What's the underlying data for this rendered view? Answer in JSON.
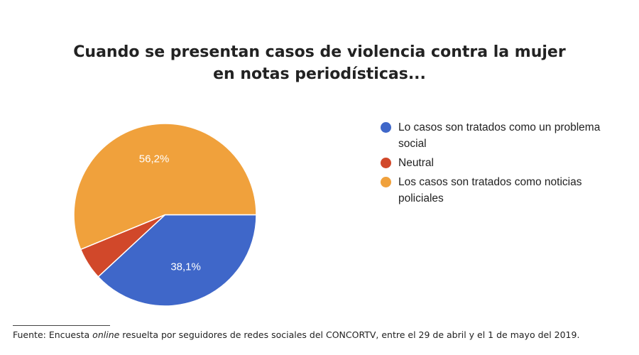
{
  "chart_data": {
    "type": "pie",
    "title": [
      "Cuando se presentan casos de violencia contra la mujer",
      "en notas periodísticas..."
    ],
    "slices": [
      {
        "label": "Lo casos son tratados como un problema social",
        "value": 38.1,
        "display": "38,1%",
        "color": "#3f67c9"
      },
      {
        "label": "Neutral",
        "value": 5.7,
        "display": "",
        "color": "#d1482a"
      },
      {
        "label": "Los casos son tratados como noticias policiales",
        "value": 56.2,
        "display": "56,2%",
        "color": "#f0a13c"
      }
    ],
    "legend_position": "right"
  },
  "source": {
    "prefix": "Fuente: Encuesta ",
    "emphasis": "online",
    "suffix": " resuelta por seguidores de redes sociales del CONCORTV, entre el 29 de abril y el 1 de mayo del 2019."
  }
}
